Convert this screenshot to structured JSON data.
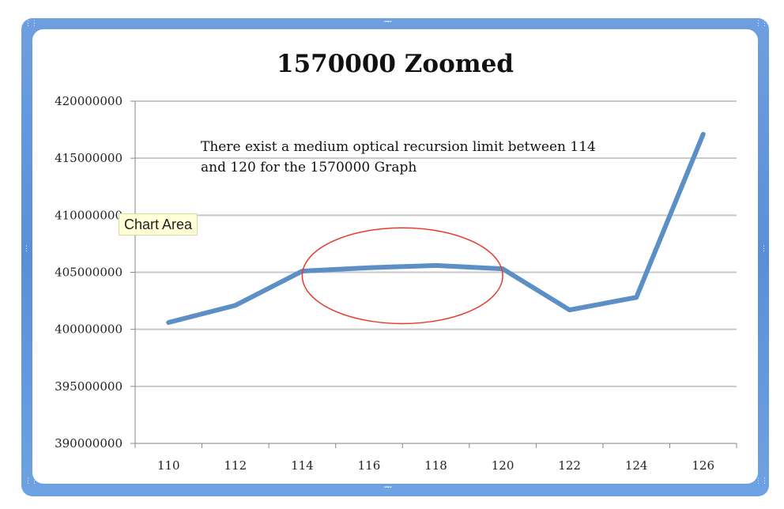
{
  "chart_data": {
    "type": "line",
    "title": "1570000 Zoomed",
    "x": [
      110,
      112,
      114,
      116,
      118,
      120,
      122,
      124,
      126
    ],
    "x_tick_labels": [
      "110",
      "112",
      "114",
      "116",
      "118",
      "120",
      "122",
      "124",
      "126"
    ],
    "series": [
      {
        "values": [
          400600000,
          402100000,
          405100000,
          405400000,
          405600000,
          405300000,
          401700000,
          402800000,
          417100000
        ]
      }
    ],
    "ylim": [
      390000000,
      420000000
    ],
    "y_tick_labels": [
      "390000000",
      "395000000",
      "400000000",
      "405000000",
      "410000000",
      "415000000",
      "420000000"
    ],
    "grid": true,
    "annotation": {
      "lines": [
        "There exist a medium optical recursion limit between 114",
        "and 120 for the 1570000 Graph"
      ]
    },
    "highlight_ellipse": {
      "x_range": [
        114,
        120
      ],
      "y_range": [
        400500000,
        408900000
      ]
    },
    "colors": {
      "series": "#5b8fc5",
      "grid": "#c8c8c8",
      "highlight": "#e83a2a",
      "frame": "#5a8fd8"
    }
  },
  "tooltip": {
    "label": "Chart Area"
  }
}
